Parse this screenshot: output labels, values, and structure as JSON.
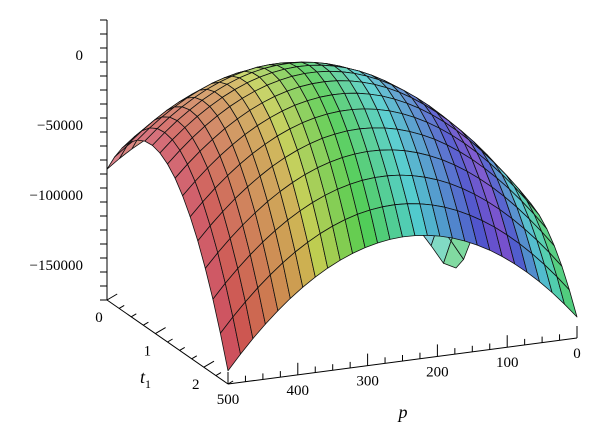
{
  "chart_data": {
    "type": "surface3d",
    "title": "",
    "colormap": "rainbow-pastel (red → yellow → cyan → violet → green), mesh lines black",
    "x_axis": {
      "label": "p",
      "range": [
        0,
        500
      ],
      "ticks": [
        500,
        400,
        300,
        200,
        100,
        0
      ],
      "tick_labels": [
        "500",
        "400",
        "300",
        "200",
        "100",
        "0"
      ]
    },
    "y_axis": {
      "label": "t",
      "label_subscript": "1",
      "range": [
        0,
        2.5
      ],
      "ticks": [
        0,
        1,
        2
      ],
      "tick_labels": [
        "0",
        "1",
        "2"
      ]
    },
    "z_axis": {
      "label": "",
      "range": [
        -175000,
        25000
      ],
      "ticks": [
        0,
        -50000,
        -100000,
        -150000
      ],
      "tick_labels": [
        "0",
        "−50000",
        "−100000",
        "−150000"
      ]
    },
    "surface_summary": {
      "max_value_approx": 5000,
      "max_location_approx": {
        "p": 300,
        "t1": 1.1
      },
      "corner_values_approx": [
        {
          "p": 500,
          "t1": 0,
          "z": -175000
        },
        {
          "p": 500,
          "t1": 2.5,
          "z": -170000
        },
        {
          "p": 0,
          "t1": 0,
          "z": -70000
        },
        {
          "p": 0,
          "t1": 2.5,
          "z": -180000
        }
      ]
    }
  }
}
